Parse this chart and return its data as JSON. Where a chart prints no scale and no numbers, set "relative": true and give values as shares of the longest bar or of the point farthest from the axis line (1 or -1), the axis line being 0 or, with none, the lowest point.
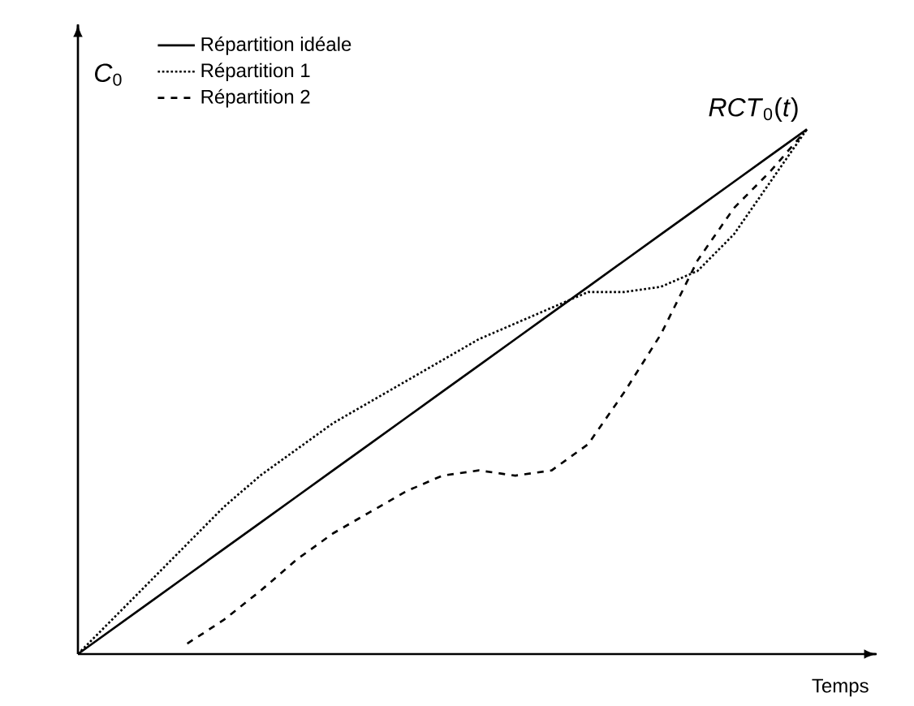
{
  "chart_data": {
    "type": "line",
    "relative": true,
    "xlabel": "Temps",
    "ylabel": "*C*$_{0}$",
    "legend": "top left",
    "annotations": [
      "*RCT*$_{0}$(*t*)"
    ],
    "categories": [
      null,
      null,
      null,
      null,
      null,
      null,
      null,
      null,
      null,
      null,
      null,
      null,
      null,
      null,
      null,
      null,
      null,
      null,
      null,
      null,
      null
    ],
    "series": [
      {
        "name": "Répartition idéale",
        "color": "#000000",
        "line_style": "solid",
        "values": [
          0,
          0.05,
          0.1,
          0.15,
          0.2,
          0.25,
          0.3,
          0.35,
          0.4,
          0.45,
          0.5,
          0.55,
          0.6,
          0.65,
          0.7,
          0.75,
          0.8,
          0.85,
          0.9,
          0.95,
          1
        ]
      },
      {
        "name": "Répartition 1",
        "color": "#000000",
        "line_style": "dotted",
        "values": [
          0,
          0.07,
          0.14,
          0.21,
          0.28,
          0.34,
          0.39,
          0.44,
          0.48,
          0.52,
          0.56,
          0.6,
          0.63,
          0.66,
          0.69,
          0.69,
          0.7,
          0.73,
          0.8,
          0.9,
          1
        ]
      },
      {
        "name": "Répartition 2",
        "color": "#000000",
        "line_style": "dashed",
        "values": [
          null,
          null,
          null,
          0.02,
          0.065,
          0.12,
          0.18,
          0.23,
          0.27,
          0.31,
          0.34,
          0.35,
          0.34,
          0.35,
          0.4,
          0.5,
          0.61,
          0.75,
          0.85,
          0.92,
          1
        ]
      }
    ]
  }
}
